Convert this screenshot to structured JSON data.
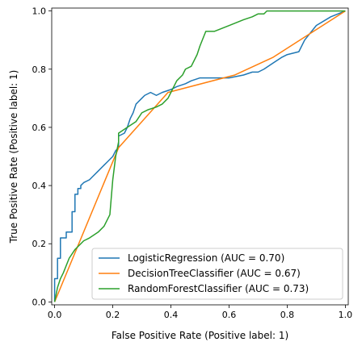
{
  "chart_data": {
    "type": "line",
    "title": "",
    "xlabel": "False Positive Rate (Positive label: 1)",
    "ylabel": "True Positive Rate (Positive label: 1)",
    "xlim": [
      -0.01,
      1.01
    ],
    "ylim": [
      -0.01,
      1.01
    ],
    "xticks": [
      "0.0",
      "0.2",
      "0.4",
      "0.6",
      "0.8",
      "1.0"
    ],
    "yticks": [
      "0.0",
      "0.2",
      "0.4",
      "0.6",
      "0.8",
      "1.0"
    ],
    "grid": false,
    "legend_position": "lower-right",
    "series": [
      {
        "name": "LogisticRegression (AUC = 0.70)",
        "color": "#1f77b4",
        "x": [
          0.0,
          0.0,
          0.01,
          0.01,
          0.02,
          0.02,
          0.04,
          0.04,
          0.06,
          0.06,
          0.07,
          0.07,
          0.08,
          0.08,
          0.09,
          0.09,
          0.1,
          0.12,
          0.13,
          0.15,
          0.17,
          0.18,
          0.2,
          0.21,
          0.22,
          0.22,
          0.24,
          0.25,
          0.26,
          0.27,
          0.28,
          0.3,
          0.31,
          0.33,
          0.35,
          0.37,
          0.4,
          0.42,
          0.45,
          0.47,
          0.5,
          0.55,
          0.6,
          0.65,
          0.68,
          0.7,
          0.72,
          0.75,
          0.78,
          0.8,
          0.84,
          0.86,
          0.9,
          0.95,
          1.0
        ],
        "y": [
          0.0,
          0.08,
          0.08,
          0.15,
          0.15,
          0.22,
          0.22,
          0.24,
          0.24,
          0.31,
          0.31,
          0.37,
          0.37,
          0.39,
          0.39,
          0.4,
          0.41,
          0.42,
          0.43,
          0.45,
          0.47,
          0.48,
          0.5,
          0.52,
          0.53,
          0.57,
          0.58,
          0.6,
          0.63,
          0.65,
          0.68,
          0.7,
          0.71,
          0.72,
          0.71,
          0.72,
          0.73,
          0.74,
          0.75,
          0.76,
          0.77,
          0.77,
          0.77,
          0.78,
          0.79,
          0.79,
          0.8,
          0.82,
          0.84,
          0.85,
          0.86,
          0.9,
          0.95,
          0.98,
          1.0
        ]
      },
      {
        "name": "DecisionTreeClassifier (AUC = 0.67)",
        "color": "#ff7f0e",
        "x": [
          0.0,
          0.22,
          0.39,
          0.62,
          0.75,
          1.0
        ],
        "y": [
          0.0,
          0.53,
          0.72,
          0.78,
          0.84,
          1.0
        ]
      },
      {
        "name": "RandomForestClassifier (AUC = 0.73)",
        "color": "#2ca02c",
        "x": [
          0.0,
          0.01,
          0.02,
          0.03,
          0.05,
          0.07,
          0.1,
          0.12,
          0.15,
          0.17,
          0.19,
          0.2,
          0.21,
          0.22,
          0.22,
          0.25,
          0.28,
          0.3,
          0.32,
          0.35,
          0.37,
          0.39,
          0.4,
          0.42,
          0.44,
          0.45,
          0.47,
          0.49,
          0.5,
          0.52,
          0.55,
          0.6,
          0.65,
          0.68,
          0.7,
          0.72,
          0.73,
          0.8,
          0.9,
          1.0
        ],
        "y": [
          0.0,
          0.05,
          0.08,
          0.1,
          0.15,
          0.18,
          0.21,
          0.22,
          0.24,
          0.26,
          0.3,
          0.42,
          0.5,
          0.55,
          0.58,
          0.6,
          0.62,
          0.65,
          0.66,
          0.67,
          0.68,
          0.7,
          0.72,
          0.76,
          0.78,
          0.8,
          0.81,
          0.85,
          0.88,
          0.93,
          0.93,
          0.95,
          0.97,
          0.98,
          0.99,
          0.99,
          1.0,
          1.0,
          1.0,
          1.0
        ]
      }
    ]
  }
}
